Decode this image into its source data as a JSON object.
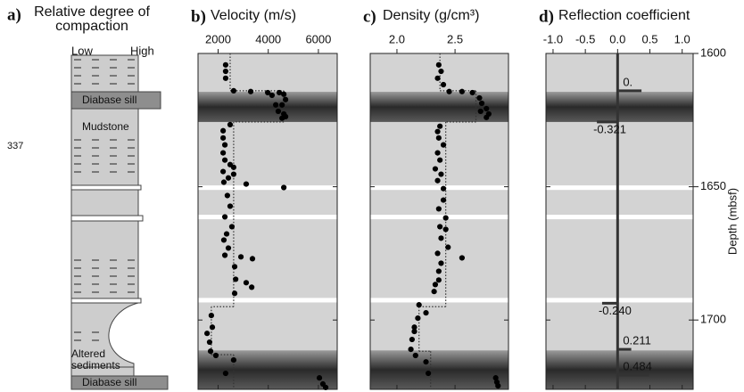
{
  "lithology": {
    "panel": "a)",
    "title": "Relative degree of compaction",
    "scale_low": "Low",
    "scale_high": "High",
    "units": [
      "Diabase sill",
      "Mudstone",
      "Altered sediments",
      "Diabase sill"
    ],
    "side_note": "337"
  },
  "zones": {
    "sills": [
      [
        1614.4,
        1625.7
      ],
      [
        1711.4,
        1726
      ]
    ],
    "veins": [
      [
        1649.5,
        1651.2
      ],
      [
        1660.5,
        1662.2
      ],
      [
        1691.7,
        1693.4
      ]
    ]
  },
  "chart_data": [
    {
      "type": "scatter",
      "panel": "b)",
      "title": "Velocity (m/s)",
      "color": "#000000",
      "step_color": "#333333",
      "xlim": [
        1200,
        6750
      ],
      "xticks": [
        2000,
        4000,
        6000
      ],
      "ylim": [
        1600,
        1726
      ],
      "yticks": [
        1600,
        1650,
        1700
      ],
      "depths": [
        1604.3,
        1606.7,
        1609.3,
        1614.0,
        1614.3,
        1614.7,
        1615.7,
        1614.7,
        1615.3,
        1617.3,
        1619.3,
        1619.3,
        1621.7,
        1622.7,
        1623.7,
        1624.3,
        1626.7,
        1629,
        1631.7,
        1634.3,
        1637.3,
        1640,
        1641.7,
        1642.7,
        1644.3,
        1645.3,
        1646.7,
        1648.3,
        1649,
        1650.3,
        1653.3,
        1657.3,
        1661.3,
        1665,
        1667.7,
        1670,
        1673,
        1675.7,
        1676.3,
        1677,
        1680,
        1684.7,
        1686,
        1687.7,
        1690,
        1698.3,
        1702.7,
        1705,
        1708.3,
        1711.7,
        1713.3,
        1715,
        1720,
        1721.7,
        1724,
        1725.3
      ],
      "values": [
        2300,
        2300,
        2300,
        2620,
        3300,
        3980,
        4150,
        4440,
        4620,
        4690,
        4550,
        4300,
        4400,
        4620,
        4690,
        4550,
        2480,
        2200,
        2200,
        2270,
        2200,
        2270,
        2480,
        2620,
        2200,
        2620,
        2410,
        2230,
        3120,
        4620,
        2370,
        2480,
        2270,
        2550,
        2340,
        2230,
        2410,
        2270,
        2910,
        3370,
        2660,
        2700,
        3120,
        3340,
        2660,
        1730,
        1770,
        1560,
        1660,
        1700,
        1910,
        2620,
        2300,
        6040,
        6180,
        6290
      ],
      "step": {
        "depths": [
          1600,
          1614,
          1625.7,
          1695,
          1713,
          1726
        ],
        "values": [
          2480,
          4620,
          2620,
          1730,
          2620
        ]
      }
    },
    {
      "type": "scatter",
      "panel": "c)",
      "title": "Density (g/cm³)",
      "color": "#000000",
      "step_color": "#333333",
      "xlim": [
        1.77,
        2.96
      ],
      "xticks": [
        {
          "value": 2.0,
          "label": "2.0"
        },
        2.5
      ],
      "ylim": [
        1600,
        1726
      ],
      "yticks": [
        1600,
        1650,
        1700
      ],
      "depths": [
        1604.3,
        1606.7,
        1609.3,
        1611.7,
        1614.3,
        1614.3,
        1614.7,
        1616.7,
        1618.7,
        1620.7,
        1621.7,
        1622.7,
        1624,
        1627.3,
        1629.3,
        1631.7,
        1634.3,
        1637.3,
        1640,
        1643.3,
        1645.3,
        1647.7,
        1650.7,
        1655,
        1658.3,
        1661.7,
        1665,
        1666,
        1669.3,
        1672.7,
        1675,
        1676.7,
        1678.7,
        1681.7,
        1685,
        1686.7,
        1689.3,
        1694.3,
        1697.3,
        1699.3,
        1702.7,
        1704.3,
        1707.3,
        1711,
        1713.3,
        1715.7,
        1720,
        1721.7,
        1723.3,
        1724.7
      ],
      "values": [
        2.36,
        2.38,
        2.35,
        2.4,
        2.45,
        2.56,
        2.65,
        2.71,
        2.73,
        2.77,
        2.72,
        2.79,
        2.77,
        2.37,
        2.35,
        2.36,
        2.4,
        2.35,
        2.37,
        2.33,
        2.38,
        2.35,
        2.4,
        2.4,
        2.36,
        2.42,
        2.37,
        2.42,
        2.38,
        2.44,
        2.35,
        2.56,
        2.38,
        2.36,
        2.36,
        2.33,
        2.32,
        2.19,
        2.25,
        2.18,
        2.15,
        2.15,
        2.13,
        2.12,
        2.16,
        2.25,
        2.27,
        2.85,
        2.86,
        2.87
      ],
      "step": {
        "depths": [
          1600,
          1614,
          1625.7,
          1695,
          1711.7,
          1726
        ],
        "values": [
          2.37,
          2.68,
          2.42,
          2.19,
          2.29
        ]
      }
    },
    {
      "type": "bar",
      "panel": "d)",
      "title": "Reflection coefficient",
      "color": "#333333",
      "xlim": [
        -1.11,
        1.17
      ],
      "xticks": [
        {
          "value": -1.0,
          "label": "-1.0"
        },
        {
          "value": -0.5,
          "label": "-0.5"
        },
        {
          "value": 0.0,
          "label": "0.0"
        },
        {
          "value": 0.5,
          "label": "0.5"
        },
        {
          "value": 1.0,
          "label": "1.0"
        }
      ],
      "ylim": [
        1600,
        1726
      ],
      "yticks": [
        1600,
        1650,
        1700
      ],
      "ylabel": "Depth (mbsf)",
      "depths": [
        1614.0,
        1625.7,
        1693.7,
        1711.0,
        1720.7
      ],
      "values": [
        0.37,
        -0.321,
        -0.24,
        0.211,
        0.484
      ],
      "value_labels": [
        "0.",
        "-0.321",
        "-0.240",
        "0.211",
        "0.484"
      ]
    }
  ]
}
